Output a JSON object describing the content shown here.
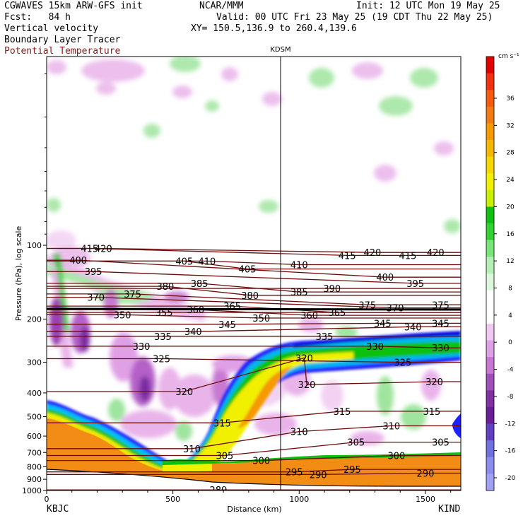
{
  "header": {
    "line1_left": "CGWAVES 15km ARW-GFS init",
    "line1_mid": "NCAR/MMM",
    "line1_right": "Init: 12 UTC Mon 19 May 25",
    "line2_left": "Fcst:   84 h",
    "line2_right": "Valid: 00 UTC Fri 23 May 25 (19 CDT Thu 22 May 25)",
    "line3_left": "Vertical velocity",
    "line3_right": "XY= 150.5,136.9 to 260.4,139.6",
    "line4_left": "Boundary Layer Tracer",
    "line5_left": "Potential Temperature"
  },
  "colors": {
    "theta_label": "#8b1a1a",
    "theta_line": "#6e0c0c",
    "tropopause_marker": "#000000"
  },
  "chart_data": {
    "type": "heatmap",
    "title": "",
    "xlabel": "Distance (km)",
    "ylabel": "Pressure (hPa), log scale",
    "x_ticks": [
      0,
      500,
      1000,
      1500
    ],
    "y_ticks": [
      100,
      200,
      300,
      400,
      500,
      600,
      700,
      800,
      900,
      1000
    ],
    "xlim": [
      0,
      1640
    ],
    "ylim": [
      1000,
      17
    ],
    "y_scale": "log",
    "left_station": "KBJC",
    "right_station": "KIND",
    "midpoint_station": "KDSM",
    "midpoint_x_km": 935,
    "colorbar": {
      "units": "cm s⁻¹",
      "ticks": [
        36,
        32,
        28,
        24,
        20,
        16,
        12,
        8,
        4,
        0,
        -4,
        -8,
        -12,
        -16,
        -20
      ],
      "colors": [
        "#e00000",
        "#f03010",
        "#f55a10",
        "#f07a14",
        "#f59a00",
        "#f5b800",
        "#f5d800",
        "#f0f000",
        "#c8f000",
        "#10c010",
        "#32d232",
        "#78e678",
        "#b4f0b4",
        "#dcf8dc",
        "#ffffff",
        "#ffffff",
        "#f0c8f0",
        "#e0a0e6",
        "#c878d2",
        "#a050b8",
        "#8030a0",
        "#6a1e96",
        "#6040c0",
        "#7070e0",
        "#8c8cf0",
        "#a0a0f5"
      ]
    },
    "theta_labels": [
      {
        "v": 415,
        "x": 170,
        "p": 103
      },
      {
        "v": 420,
        "x": 225,
        "p": 103
      },
      {
        "v": 400,
        "x": 125,
        "p": 115
      },
      {
        "v": 395,
        "x": 185,
        "p": 128
      },
      {
        "v": 405,
        "x": 545,
        "p": 116
      },
      {
        "v": 410,
        "x": 635,
        "p": 116
      },
      {
        "v": 405,
        "x": 795,
        "p": 125
      },
      {
        "v": 410,
        "x": 1000,
        "p": 120
      },
      {
        "v": 415,
        "x": 1190,
        "p": 110
      },
      {
        "v": 420,
        "x": 1290,
        "p": 107
      },
      {
        "v": 415,
        "x": 1430,
        "p": 110
      },
      {
        "v": 420,
        "x": 1540,
        "p": 107
      },
      {
        "v": 400,
        "x": 1340,
        "p": 135
      },
      {
        "v": 395,
        "x": 1460,
        "p": 143
      },
      {
        "v": 390,
        "x": 1130,
        "p": 150
      },
      {
        "v": 385,
        "x": 1000,
        "p": 155
      },
      {
        "v": 380,
        "x": 805,
        "p": 160
      },
      {
        "v": 380,
        "x": 470,
        "p": 147
      },
      {
        "v": 385,
        "x": 605,
        "p": 143
      },
      {
        "v": 375,
        "x": 340,
        "p": 158
      },
      {
        "v": 370,
        "x": 195,
        "p": 163
      },
      {
        "v": 375,
        "x": 1270,
        "p": 175
      },
      {
        "v": 370,
        "x": 1380,
        "p": 180
      },
      {
        "v": 375,
        "x": 1560,
        "p": 175
      },
      {
        "v": 350,
        "x": 300,
        "p": 192
      },
      {
        "v": 355,
        "x": 465,
        "p": 188
      },
      {
        "v": 360,
        "x": 590,
        "p": 183
      },
      {
        "v": 365,
        "x": 735,
        "p": 177
      },
      {
        "v": 350,
        "x": 850,
        "p": 198
      },
      {
        "v": 360,
        "x": 1040,
        "p": 193
      },
      {
        "v": 365,
        "x": 1150,
        "p": 188
      },
      {
        "v": 345,
        "x": 1330,
        "p": 208
      },
      {
        "v": 340,
        "x": 1450,
        "p": 215
      },
      {
        "v": 345,
        "x": 1560,
        "p": 208
      },
      {
        "v": 345,
        "x": 715,
        "p": 210
      },
      {
        "v": 340,
        "x": 580,
        "p": 225
      },
      {
        "v": 335,
        "x": 460,
        "p": 235
      },
      {
        "v": 335,
        "x": 1100,
        "p": 235
      },
      {
        "v": 330,
        "x": 1300,
        "p": 258
      },
      {
        "v": 330,
        "x": 1560,
        "p": 262
      },
      {
        "v": 330,
        "x": 375,
        "p": 258
      },
      {
        "v": 325,
        "x": 455,
        "p": 290
      },
      {
        "v": 320,
        "x": 1020,
        "p": 288
      },
      {
        "v": 325,
        "x": 1410,
        "p": 300
      },
      {
        "v": 320,
        "x": 545,
        "p": 395
      },
      {
        "v": 320,
        "x": 1030,
        "p": 370
      },
      {
        "v": 320,
        "x": 1535,
        "p": 360
      },
      {
        "v": 315,
        "x": 695,
        "p": 530
      },
      {
        "v": 315,
        "x": 1170,
        "p": 475
      },
      {
        "v": 315,
        "x": 1525,
        "p": 475
      },
      {
        "v": 310,
        "x": 1000,
        "p": 575
      },
      {
        "v": 310,
        "x": 1365,
        "p": 545
      },
      {
        "v": 310,
        "x": 575,
        "p": 675
      },
      {
        "v": 305,
        "x": 1225,
        "p": 635
      },
      {
        "v": 305,
        "x": 1560,
        "p": 635
      },
      {
        "v": 305,
        "x": 705,
        "p": 720
      },
      {
        "v": 300,
        "x": 850,
        "p": 755
      },
      {
        "v": 300,
        "x": 1385,
        "p": 720
      },
      {
        "v": 295,
        "x": 980,
        "p": 840
      },
      {
        "v": 290,
        "x": 1075,
        "p": 860
      },
      {
        "v": 295,
        "x": 1210,
        "p": 820
      },
      {
        "v": 290,
        "x": 1500,
        "p": 850
      },
      {
        "v": 289,
        "x": 680,
        "p": 995
      }
    ]
  }
}
